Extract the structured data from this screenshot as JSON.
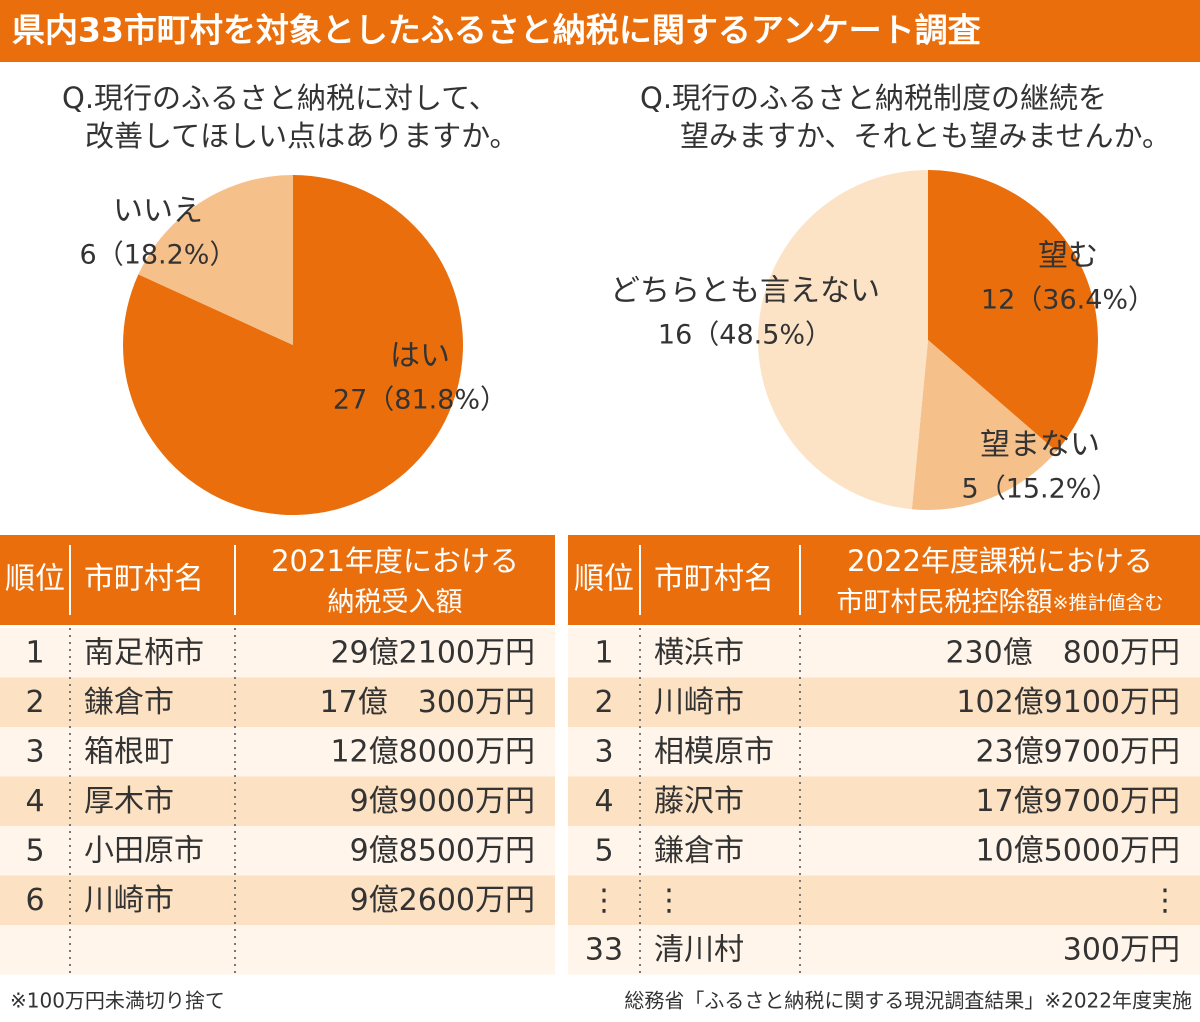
{
  "header": {
    "title": "県内33市町村を対象としたふるさと納税に関するアンケート調査"
  },
  "chart_data": [
    {
      "type": "pie",
      "title": [
        "Q.現行のふるさと納税に対して、",
        "改善してほしい点はありますか。"
      ],
      "categories": [
        "はい",
        "いいえ"
      ],
      "values": [
        27,
        6
      ],
      "value_labels": [
        "27（81.8%）",
        "6（18.2%）"
      ],
      "colors": [
        "#ea6f0c",
        "#f6c08b"
      ]
    },
    {
      "type": "pie",
      "title": [
        "Q.現行のふるさと納税制度の継続を",
        "望みますか、それとも望みませんか。"
      ],
      "categories": [
        "望む",
        "望まない",
        "どちらとも言えない"
      ],
      "values": [
        12,
        5,
        16
      ],
      "value_labels": [
        "12（36.4%）",
        "5（15.2%）",
        "16（48.5%）"
      ],
      "colors": [
        "#ea6f0c",
        "#f6c08b",
        "#fce3c6"
      ]
    }
  ],
  "tables": [
    {
      "headers": [
        "順位",
        "市町村名"
      ],
      "amount_header": [
        "2021年度における",
        "納税受入額"
      ],
      "rows": [
        [
          "1",
          "南足柄市",
          "29億2100万円"
        ],
        [
          "2",
          "鎌倉市",
          "17億　300万円"
        ],
        [
          "3",
          "箱根町",
          "12億8000万円"
        ],
        [
          "4",
          "厚木市",
          "9億9000万円"
        ],
        [
          "5",
          "小田原市",
          "9億8500万円"
        ],
        [
          "6",
          "川崎市",
          "9億2600万円"
        ]
      ]
    },
    {
      "headers": [
        "順位",
        "市町村名"
      ],
      "amount_header": [
        "2022年度課税における",
        "市町村民税控除額"
      ],
      "amount_note": "※推計値含む",
      "rows": [
        [
          "1",
          "横浜市",
          "230億　800万円"
        ],
        [
          "2",
          "川崎市",
          "102億9100万円"
        ],
        [
          "3",
          "相模原市",
          "23億9700万円"
        ],
        [
          "4",
          "藤沢市",
          "17億9700万円"
        ],
        [
          "5",
          "鎌倉市",
          "10億5000万円"
        ],
        [
          "⋮",
          "⋮",
          "⋮"
        ],
        [
          "33",
          "清川村",
          "300万円"
        ]
      ]
    }
  ],
  "footnotes": [
    "※100万円未満切り捨て",
    "総務省「ふるさと納税に関する現況調査結果」※2022年度実施"
  ]
}
